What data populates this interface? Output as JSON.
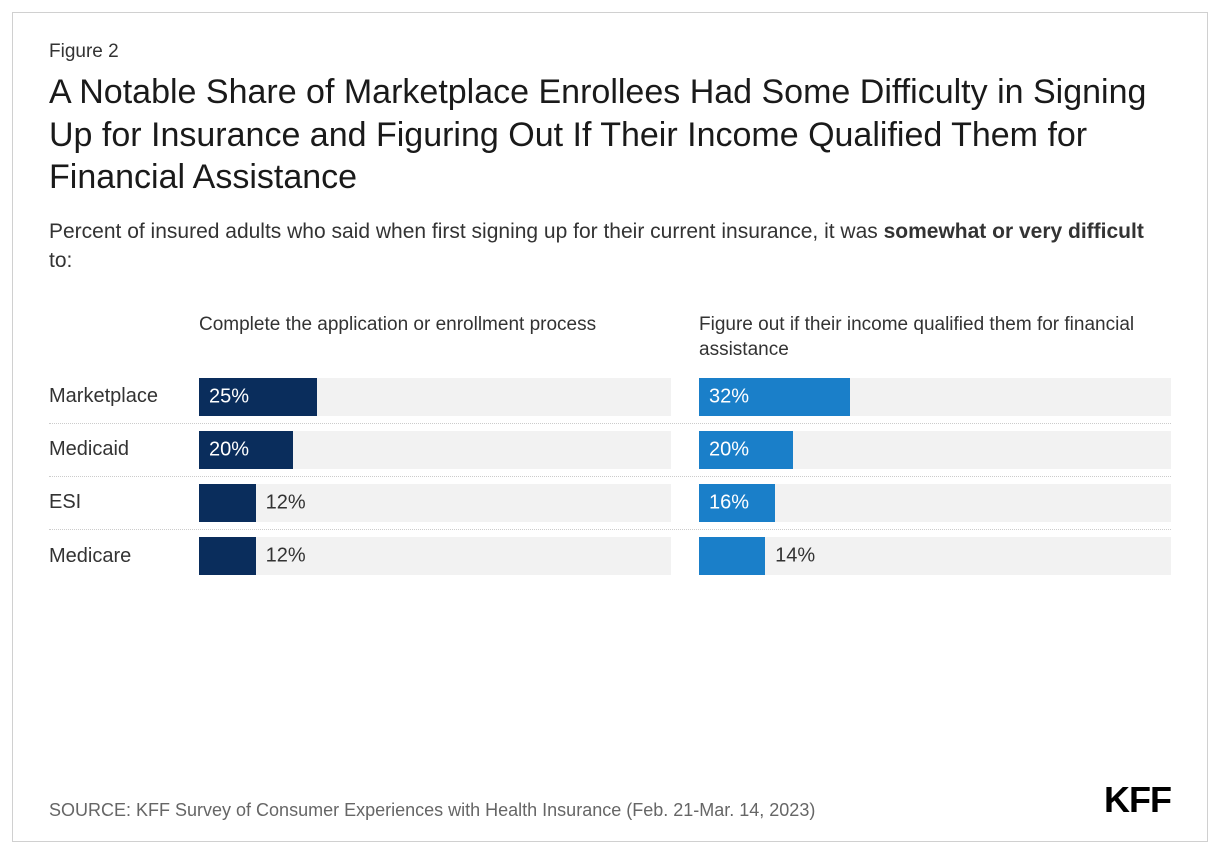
{
  "figure_label": "Figure 2",
  "title": "A Notable Share of Marketplace Enrollees Had Some Difficulty in Signing Up for Insurance and Figuring Out If Their Income Qualified Them for Financial Assistance",
  "subtitle_prefix": "Percent of insured adults who said when first signing up for their current insurance, it was ",
  "subtitle_bold": "somewhat or very difficult",
  "subtitle_suffix": " to:",
  "source": "SOURCE: KFF Survey of Consumer Experiences with Health Insurance (Feb. 21-Mar. 14, 2023)",
  "logo": "KFF",
  "chart": {
    "type": "bar",
    "xmax": 100,
    "track_color": "#f2f2f2",
    "row_label_fontsize": 20,
    "value_fontsize": 20,
    "border_color": "#cccccc",
    "columns": [
      {
        "header": "Complete the application or enrollment process",
        "color": "#0a2d5c"
      },
      {
        "header": "Figure out if their income qualified them for financial assistance",
        "color": "#1a7fc9"
      }
    ],
    "rows": [
      {
        "label": "Marketplace",
        "values": [
          25,
          32
        ],
        "inside": [
          true,
          true
        ]
      },
      {
        "label": "Medicaid",
        "values": [
          20,
          20
        ],
        "inside": [
          true,
          true
        ]
      },
      {
        "label": "ESI",
        "values": [
          12,
          16
        ],
        "inside": [
          false,
          true
        ]
      },
      {
        "label": "Medicare",
        "values": [
          12,
          14
        ],
        "inside": [
          false,
          false
        ]
      }
    ]
  }
}
